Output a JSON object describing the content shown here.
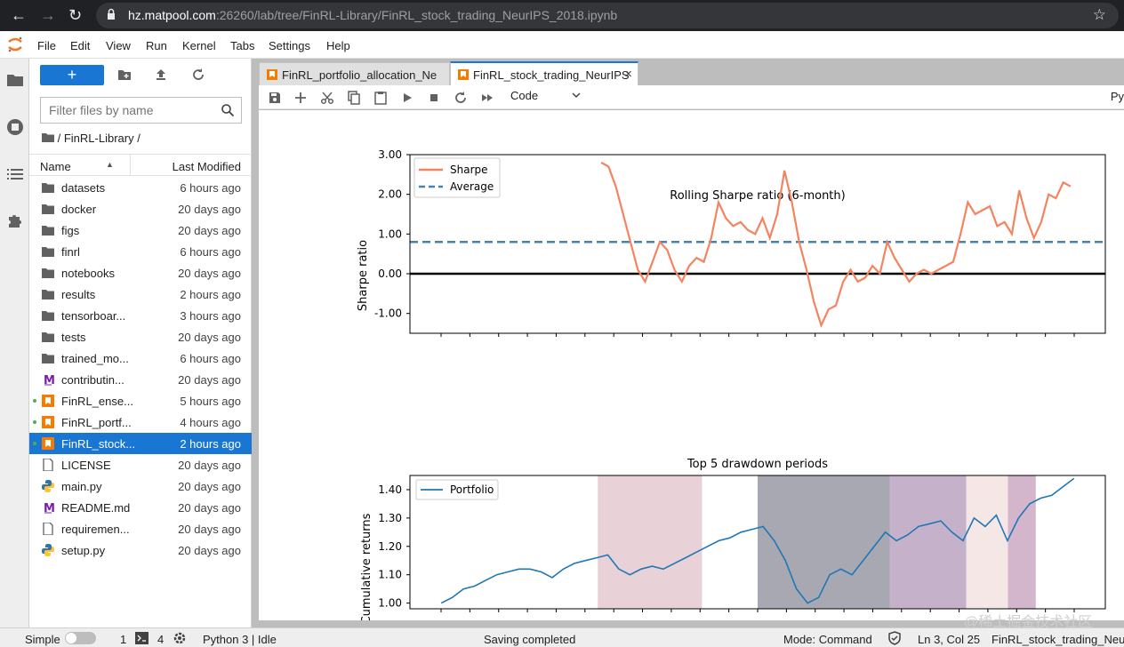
{
  "browser": {
    "url_host": "hz.matpool.com",
    "url_rest": ":26260/lab/tree/FinRL-Library/FinRL_stock_trading_NeurIPS_2018.ipynb"
  },
  "menu": [
    "File",
    "Edit",
    "View",
    "Run",
    "Kernel",
    "Tabs",
    "Settings",
    "Help"
  ],
  "filebrowser": {
    "new_label": "+",
    "filter_placeholder": "Filter files by name",
    "breadcrumb": "/ FinRL-Library /",
    "col_name": "Name",
    "col_modified": "Last Modified",
    "files": [
      {
        "name": "datasets",
        "modified": "6 hours ago",
        "icon": "folder-icon"
      },
      {
        "name": "docker",
        "modified": "20 days ago",
        "icon": "folder-icon"
      },
      {
        "name": "figs",
        "modified": "20 days ago",
        "icon": "folder-icon"
      },
      {
        "name": "finrl",
        "modified": "6 hours ago",
        "icon": "folder-icon"
      },
      {
        "name": "notebooks",
        "modified": "20 days ago",
        "icon": "folder-icon"
      },
      {
        "name": "results",
        "modified": "2 hours ago",
        "icon": "folder-icon"
      },
      {
        "name": "tensorboar...",
        "modified": "3 hours ago",
        "icon": "folder-icon"
      },
      {
        "name": "tests",
        "modified": "20 days ago",
        "icon": "folder-icon"
      },
      {
        "name": "trained_mo...",
        "modified": "6 hours ago",
        "icon": "folder-icon"
      },
      {
        "name": "contributin...",
        "modified": "20 days ago",
        "icon": "markdown-icon"
      },
      {
        "name": "FinRL_ense...",
        "modified": "5 hours ago",
        "icon": "notebook-icon",
        "running": true
      },
      {
        "name": "FinRL_portf...",
        "modified": "4 hours ago",
        "icon": "notebook-icon",
        "running": true
      },
      {
        "name": "FinRL_stock...",
        "modified": "2 hours ago",
        "icon": "notebook-icon",
        "running": true,
        "selected": true
      },
      {
        "name": "LICENSE",
        "modified": "20 days ago",
        "icon": "file-icon"
      },
      {
        "name": "main.py",
        "modified": "20 days ago",
        "icon": "python-icon"
      },
      {
        "name": "README.md",
        "modified": "20 days ago",
        "icon": "markdown-icon"
      },
      {
        "name": "requiremen...",
        "modified": "20 days ago",
        "icon": "file-icon"
      },
      {
        "name": "setup.py",
        "modified": "20 days ago",
        "icon": "python-icon"
      }
    ]
  },
  "tabs": [
    {
      "label": "FinRL_portfolio_allocation_Ne"
    },
    {
      "label": "FinRL_stock_trading_NeurIPS"
    }
  ],
  "toolbar": {
    "cell_type": "Code",
    "kernel": "Py"
  },
  "chart_data": [
    {
      "type": "line",
      "title": "Rolling Sharpe ratio (6-month)",
      "ylabel": "Sharpe ratio",
      "ylim": [
        -1.5,
        3.0
      ],
      "yticks": [
        "3.00",
        "2.00",
        "1.00",
        "0.00",
        "-1.00"
      ],
      "ytick_values": [
        3.0,
        2.0,
        1.0,
        0.0,
        -1.0
      ],
      "legend": [
        "Sharpe",
        "Average"
      ],
      "legend_position": "upper-left",
      "average": 0.8,
      "series": [
        {
          "name": "Sharpe",
          "color": "#f4845f",
          "values": [
            2.8,
            2.7,
            2.2,
            1.5,
            0.8,
            0.1,
            -0.2,
            0.3,
            0.8,
            0.6,
            0.1,
            -0.2,
            0.2,
            0.4,
            0.3,
            0.9,
            1.8,
            1.4,
            1.2,
            1.3,
            1.1,
            1.0,
            1.4,
            0.9,
            1.5,
            2.6,
            1.8,
            0.8,
            0.1,
            -0.7,
            -1.3,
            -0.9,
            -0.8,
            -0.2,
            0.1,
            -0.2,
            -0.1,
            0.2,
            0.0,
            0.8,
            0.4,
            0.1,
            -0.2,
            0.0,
            0.1,
            0.0,
            0.1,
            0.2,
            0.3,
            1.0,
            1.8,
            1.5,
            1.6,
            1.7,
            1.2,
            1.3,
            1.0,
            2.1,
            1.4,
            0.9,
            1.3,
            2.0,
            1.9,
            2.3,
            2.2
          ]
        }
      ]
    },
    {
      "type": "line",
      "title": "Top 5 drawdown periods",
      "ylabel": "Cumulative returns",
      "ylim": [
        0.98,
        1.45
      ],
      "yticks": [
        "1.40",
        "1.30",
        "1.20",
        "1.10",
        "1.00"
      ],
      "ytick_values": [
        1.4,
        1.3,
        1.2,
        1.1,
        1.0
      ],
      "legend": [
        "Portfolio"
      ],
      "legend_position": "upper-left",
      "series": [
        {
          "name": "Portfolio",
          "color": "#1f77b4",
          "values": [
            1.0,
            1.02,
            1.05,
            1.06,
            1.08,
            1.1,
            1.11,
            1.12,
            1.12,
            1.11,
            1.09,
            1.12,
            1.14,
            1.15,
            1.16,
            1.17,
            1.12,
            1.1,
            1.12,
            1.13,
            1.12,
            1.14,
            1.16,
            1.18,
            1.2,
            1.22,
            1.23,
            1.25,
            1.26,
            1.27,
            1.22,
            1.15,
            1.05,
            1.0,
            1.02,
            1.1,
            1.12,
            1.1,
            1.15,
            1.2,
            1.25,
            1.22,
            1.24,
            1.27,
            1.28,
            1.29,
            1.25,
            1.22,
            1.3,
            1.27,
            1.31,
            1.22,
            1.3,
            1.35,
            1.37,
            1.38,
            1.41,
            1.44
          ]
        }
      ],
      "drawdowns": [
        {
          "start": 0.27,
          "end": 0.42,
          "color": "#c98d9d",
          "alpha": 0.4
        },
        {
          "start": 0.5,
          "end": 0.69,
          "color": "#3f3f56",
          "alpha": 0.45
        },
        {
          "start": 0.69,
          "end": 0.8,
          "color": "#6d3f7a",
          "alpha": 0.4
        },
        {
          "start": 0.8,
          "end": 0.86,
          "color": "#e8c4c4",
          "alpha": 0.4
        },
        {
          "start": 0.86,
          "end": 0.9,
          "color": "#9d5a8d",
          "alpha": 0.45
        }
      ]
    }
  ],
  "status": {
    "mode_label": "Simple",
    "terminals": "1",
    "kernels": "4",
    "kernel_status": "Python 3 | Idle",
    "message": "Saving completed",
    "command_mode": "Mode: Command",
    "cursor": "Ln 3, Col 25",
    "filename": "FinRL_stock_trading_NeurI"
  },
  "watermark": "@稀土掘金技术社区"
}
